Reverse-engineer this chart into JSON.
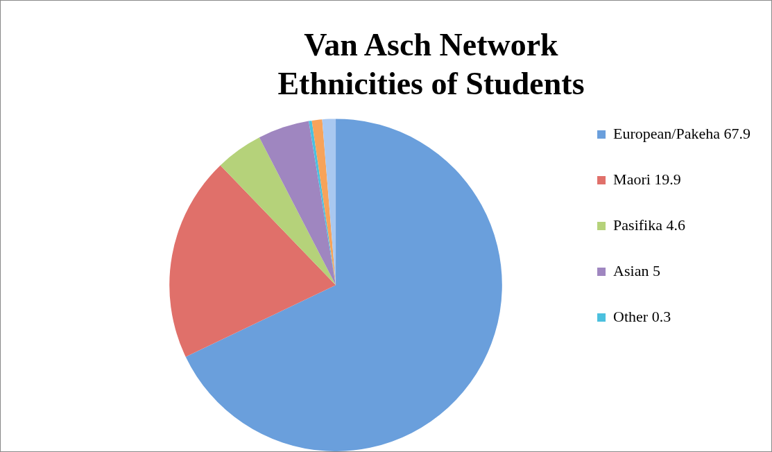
{
  "chart_data": {
    "type": "pie",
    "title": "Van Asch Network\nEthnicities of Students",
    "categories": [
      "European/Pakeha 67.9",
      "Maori 19.9",
      "Pasifika 4.6",
      "Asian 5",
      "Other 0.3",
      null,
      null
    ],
    "values": [
      67.9,
      19.9,
      4.6,
      5,
      0.3,
      1.0,
      1.3
    ],
    "colors": [
      "#6a9fdc",
      "#e0706a",
      "#b5d27a",
      "#9f86c0",
      "#4bc0de",
      "#f7a35a",
      "#a9c8f0"
    ],
    "legend": "right"
  }
}
